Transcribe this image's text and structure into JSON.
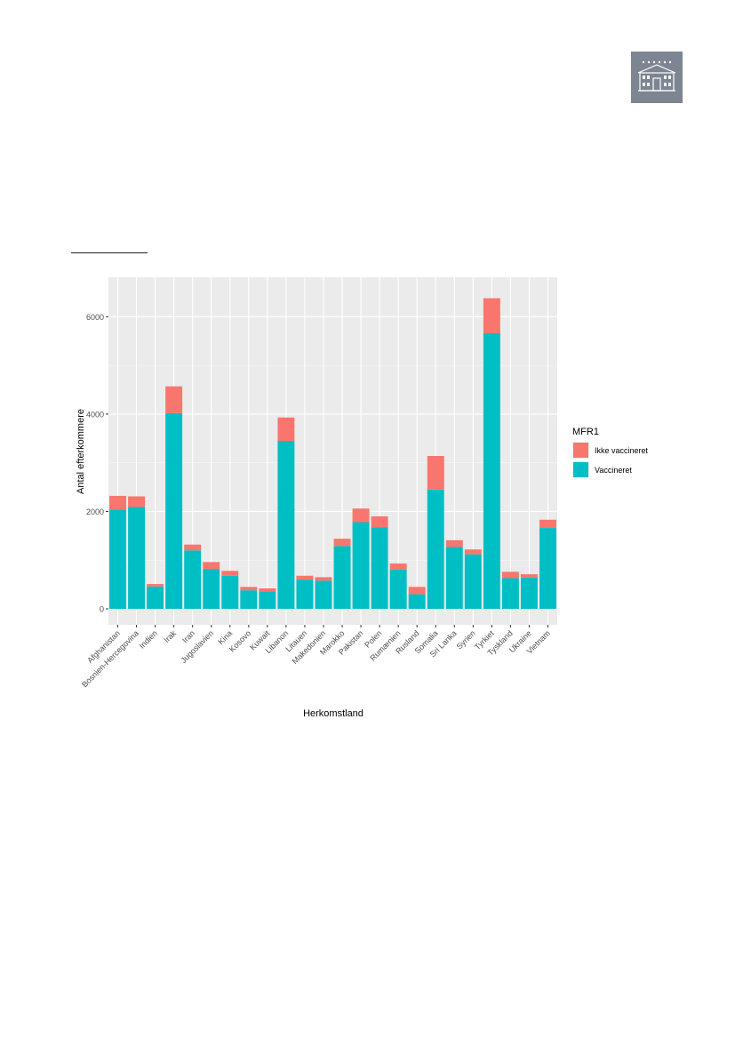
{
  "logo": {
    "icon": "building-icon",
    "color": "#7c8591"
  },
  "chart_data": {
    "type": "bar",
    "stacked": true,
    "title": "",
    "xlabel": "Herkomstland",
    "ylabel": "Antal efterkommere",
    "ylim": [
      0,
      6700
    ],
    "yticks": [
      0,
      2000,
      4000,
      6000
    ],
    "grid": true,
    "legend_position": "right",
    "legend_title": "MFR1",
    "categories": [
      "Afghanistan",
      "Bosnien-Hercegovina",
      "Indien",
      "Irak",
      "Iran",
      "Jugoslavien",
      "Kina",
      "Kosovo",
      "Kuwait",
      "Libanon",
      "Litauen",
      "Makedonien",
      "Marokko",
      "Pakistan",
      "Polen",
      "Rumænien",
      "Rusland",
      "Somalia",
      "Sri Lanka",
      "Syrien",
      "Tyrkiet",
      "Tyskland",
      "Ukraine",
      "Vietnam"
    ],
    "series": [
      {
        "name": "Vaccineret",
        "color": "#00bfc4",
        "values": [
          2040,
          2090,
          460,
          4020,
          1200,
          820,
          680,
          380,
          360,
          3450,
          600,
          580,
          1290,
          1780,
          1670,
          810,
          300,
          2450,
          1270,
          1120,
          5660,
          630,
          640,
          1660
        ]
      },
      {
        "name": "Ikke vaccineret",
        "color": "#f8766d",
        "values": [
          280,
          220,
          50,
          550,
          120,
          140,
          100,
          70,
          60,
          480,
          80,
          70,
          150,
          280,
          230,
          120,
          150,
          690,
          140,
          100,
          720,
          130,
          70,
          170
        ]
      }
    ],
    "legend_order": [
      "Ikke vaccineret",
      "Vaccineret"
    ]
  }
}
